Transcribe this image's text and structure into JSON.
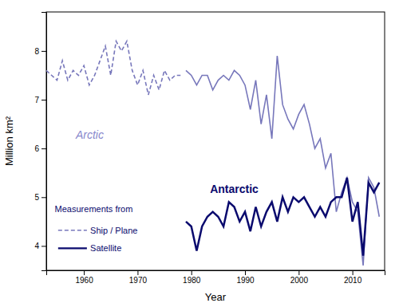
{
  "chart_data": {
    "type": "line",
    "xlabel": "Year",
    "ylabel": "Million km²",
    "xlim": [
      1953,
      2016
    ],
    "ylim": [
      3.5,
      8.8
    ],
    "xticks": [
      1960,
      1970,
      1980,
      1990,
      2000,
      2010
    ],
    "yticks": [
      4,
      5,
      6,
      7,
      8
    ],
    "series": [
      {
        "color": "#7777bb",
        "line_style": "dashed",
        "x": [
          1953,
          1954,
          1955,
          1956,
          1957,
          1958,
          1959,
          1960,
          1961,
          1962,
          1963,
          1964,
          1965,
          1966,
          1967,
          1968,
          1969,
          1970,
          1971,
          1972,
          1973,
          1974,
          1975,
          1976,
          1977,
          1978
        ],
        "values": [
          7.6,
          7.5,
          7.4,
          7.8,
          7.4,
          7.6,
          7.5,
          7.7,
          7.3,
          7.5,
          7.8,
          8.1,
          7.5,
          8.2,
          8.0,
          8.2,
          7.6,
          7.3,
          7.6,
          7.1,
          7.5,
          7.2,
          7.6,
          7.4,
          7.5,
          7.5
        ]
      },
      {
        "color": "#7777bb",
        "line_style": "solid",
        "x": [
          1979,
          1980,
          1981,
          1982,
          1983,
          1984,
          1985,
          1986,
          1987,
          1988,
          1989,
          1990,
          1991,
          1992,
          1993,
          1994,
          1995,
          1996,
          1997,
          1998,
          1999,
          2000,
          2001,
          2002,
          2003,
          2004,
          2005,
          2006,
          2007,
          2008,
          2009,
          2010,
          2011,
          2012,
          2013,
          2014,
          2015
        ],
        "values": [
          7.6,
          7.5,
          7.3,
          7.5,
          7.5,
          7.2,
          7.4,
          7.5,
          7.4,
          7.6,
          7.5,
          7.3,
          6.8,
          7.4,
          6.5,
          7.1,
          6.2,
          7.9,
          6.9,
          6.6,
          6.4,
          6.7,
          6.9,
          6.5,
          6.0,
          6.2,
          5.6,
          5.9,
          4.7,
          5.1,
          5.4,
          4.9,
          4.7,
          3.6,
          5.4,
          5.2,
          4.6
        ]
      },
      {
        "color": "#0a0a6e",
        "line_style": "solid",
        "x": [
          1979,
          1980,
          1981,
          1982,
          1983,
          1984,
          1985,
          1986,
          1987,
          1988,
          1989,
          1990,
          1991,
          1992,
          1993,
          1994,
          1995,
          1996,
          1997,
          1998,
          1999,
          2000,
          2001,
          2002,
          2003,
          2004,
          2005,
          2006,
          2007,
          2008,
          2009,
          2010,
          2011,
          2012,
          2013,
          2014,
          2015
        ],
        "values": [
          4.5,
          4.4,
          3.9,
          4.4,
          4.6,
          4.7,
          4.6,
          4.4,
          4.9,
          4.8,
          4.5,
          4.7,
          4.3,
          4.8,
          4.4,
          4.7,
          4.9,
          4.5,
          5.0,
          4.7,
          5.0,
          4.9,
          5.0,
          4.8,
          4.6,
          4.8,
          4.6,
          4.9,
          5.0,
          5.0,
          5.4,
          4.5,
          4.9,
          3.8,
          5.3,
          5.1,
          5.3
        ]
      }
    ],
    "annotations": [
      {
        "text": "Arctic",
        "color": "#8888cc"
      },
      {
        "text": "Antarctic",
        "color": "#0a0a6e"
      },
      {
        "text": "Measurements from",
        "color": "#0a0a6e"
      },
      {
        "text": "Ship / Plane",
        "color": "#0a0a6e"
      },
      {
        "text": "Satellite",
        "color": "#0a0a6e"
      }
    ]
  }
}
